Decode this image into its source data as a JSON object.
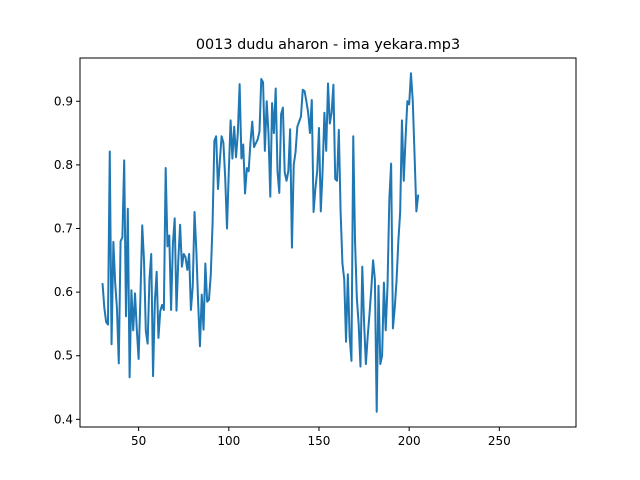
{
  "chart_data": {
    "type": "line",
    "title": "0013 dudu aharon - ima yekara.mp3",
    "xlabel": "",
    "ylabel": "",
    "xlim": [
      17.5,
      292.5
    ],
    "ylim": [
      0.388,
      0.968
    ],
    "xticks": [
      50,
      100,
      150,
      200,
      250
    ],
    "yticks": [
      0.4,
      0.5,
      0.6,
      0.7,
      0.8,
      0.9
    ],
    "grid": false,
    "line_color": "#1f77b4",
    "series": [
      {
        "values": [
          [
            30,
            0.613
          ],
          [
            31,
            0.575
          ],
          [
            32,
            0.553
          ],
          [
            33,
            0.549
          ],
          [
            34,
            0.821
          ],
          [
            35,
            0.518
          ],
          [
            36,
            0.679
          ],
          [
            37,
            0.615
          ],
          [
            38,
            0.574
          ],
          [
            39,
            0.488
          ],
          [
            40,
            0.68
          ],
          [
            41,
            0.686
          ],
          [
            42,
            0.807
          ],
          [
            43,
            0.562
          ],
          [
            44,
            0.731
          ],
          [
            45,
            0.466
          ],
          [
            46,
            0.603
          ],
          [
            47,
            0.54
          ],
          [
            48,
            0.598
          ],
          [
            49,
            0.541
          ],
          [
            50,
            0.495
          ],
          [
            51,
            0.592
          ],
          [
            52,
            0.705
          ],
          [
            53,
            0.649
          ],
          [
            54,
            0.539
          ],
          [
            55,
            0.519
          ],
          [
            56,
            0.62
          ],
          [
            57,
            0.66
          ],
          [
            58,
            0.468
          ],
          [
            59,
            0.585
          ],
          [
            60,
            0.632
          ],
          [
            61,
            0.528
          ],
          [
            62,
            0.57
          ],
          [
            63,
            0.58
          ],
          [
            64,
            0.572
          ],
          [
            65,
            0.795
          ],
          [
            66,
            0.672
          ],
          [
            67,
            0.689
          ],
          [
            68,
            0.572
          ],
          [
            69,
            0.676
          ],
          [
            70,
            0.716
          ],
          [
            71,
            0.571
          ],
          [
            72,
            0.65
          ],
          [
            73,
            0.706
          ],
          [
            74,
            0.64
          ],
          [
            75,
            0.66
          ],
          [
            76,
            0.655
          ],
          [
            77,
            0.635
          ],
          [
            78,
            0.66
          ],
          [
            79,
            0.572
          ],
          [
            80,
            0.609
          ],
          [
            81,
            0.726
          ],
          [
            82,
            0.666
          ],
          [
            83,
            0.584
          ],
          [
            84,
            0.515
          ],
          [
            85,
            0.596
          ],
          [
            86,
            0.541
          ],
          [
            87,
            0.645
          ],
          [
            88,
            0.585
          ],
          [
            89,
            0.588
          ],
          [
            90,
            0.627
          ],
          [
            91,
            0.708
          ],
          [
            92,
            0.838
          ],
          [
            93,
            0.845
          ],
          [
            94,
            0.762
          ],
          [
            95,
            0.805
          ],
          [
            96,
            0.845
          ],
          [
            97,
            0.835
          ],
          [
            98,
            0.78
          ],
          [
            99,
            0.7
          ],
          [
            100,
            0.79
          ],
          [
            101,
            0.87
          ],
          [
            102,
            0.81
          ],
          [
            103,
            0.86
          ],
          [
            104,
            0.812
          ],
          [
            105,
            0.85
          ],
          [
            106,
            0.927
          ],
          [
            107,
            0.81
          ],
          [
            108,
            0.832
          ],
          [
            109,
            0.755
          ],
          [
            110,
            0.795
          ],
          [
            111,
            0.79
          ],
          [
            112,
            0.835
          ],
          [
            113,
            0.868
          ],
          [
            114,
            0.828
          ],
          [
            115,
            0.834
          ],
          [
            116,
            0.84
          ],
          [
            117,
            0.852
          ],
          [
            118,
            0.935
          ],
          [
            119,
            0.93
          ],
          [
            120,
            0.822
          ],
          [
            121,
            0.9
          ],
          [
            122,
            0.85
          ],
          [
            123,
            0.75
          ],
          [
            124,
            0.897
          ],
          [
            125,
            0.85
          ],
          [
            126,
            0.92
          ],
          [
            127,
            0.79
          ],
          [
            128,
            0.756
          ],
          [
            129,
            0.88
          ],
          [
            130,
            0.89
          ],
          [
            131,
            0.788
          ],
          [
            132,
            0.775
          ],
          [
            133,
            0.79
          ],
          [
            134,
            0.856
          ],
          [
            135,
            0.67
          ],
          [
            136,
            0.8
          ],
          [
            137,
            0.82
          ],
          [
            138,
            0.86
          ],
          [
            139,
            0.868
          ],
          [
            140,
            0.876
          ],
          [
            141,
            0.918
          ],
          [
            142,
            0.916
          ],
          [
            143,
            0.9
          ],
          [
            144,
            0.882
          ],
          [
            145,
            0.85
          ],
          [
            146,
            0.902
          ],
          [
            147,
            0.726
          ],
          [
            148,
            0.762
          ],
          [
            149,
            0.79
          ],
          [
            150,
            0.858
          ],
          [
            151,
            0.727
          ],
          [
            152,
            0.79
          ],
          [
            153,
            0.882
          ],
          [
            154,
            0.822
          ],
          [
            155,
            0.928
          ],
          [
            156,
            0.865
          ],
          [
            157,
            0.882
          ],
          [
            158,
            0.926
          ],
          [
            159,
            0.778
          ],
          [
            160,
            0.775
          ],
          [
            161,
            0.855
          ],
          [
            162,
            0.725
          ],
          [
            163,
            0.645
          ],
          [
            164,
            0.62
          ],
          [
            165,
            0.522
          ],
          [
            166,
            0.628
          ],
          [
            167,
            0.53
          ],
          [
            168,
            0.492
          ],
          [
            169,
            0.845
          ],
          [
            170,
            0.68
          ],
          [
            171,
            0.59
          ],
          [
            172,
            0.55
          ],
          [
            173,
            0.483
          ],
          [
            174,
            0.64
          ],
          [
            175,
            0.553
          ],
          [
            176,
            0.487
          ],
          [
            177,
            0.53
          ],
          [
            178,
            0.565
          ],
          [
            179,
            0.605
          ],
          [
            180,
            0.65
          ],
          [
            181,
            0.62
          ],
          [
            182,
            0.412
          ],
          [
            183,
            0.61
          ],
          [
            184,
            0.487
          ],
          [
            185,
            0.5
          ],
          [
            186,
            0.615
          ],
          [
            187,
            0.54
          ],
          [
            188,
            0.61
          ],
          [
            189,
            0.745
          ],
          [
            190,
            0.802
          ],
          [
            191,
            0.543
          ],
          [
            192,
            0.575
          ],
          [
            193,
            0.618
          ],
          [
            194,
            0.68
          ],
          [
            195,
            0.725
          ],
          [
            196,
            0.87
          ],
          [
            197,
            0.775
          ],
          [
            198,
            0.842
          ],
          [
            199,
            0.9
          ],
          [
            200,
            0.895
          ],
          [
            201,
            0.944
          ],
          [
            202,
            0.9
          ],
          [
            203,
            0.815
          ],
          [
            204,
            0.727
          ],
          [
            205,
            0.752
          ]
        ]
      }
    ]
  }
}
